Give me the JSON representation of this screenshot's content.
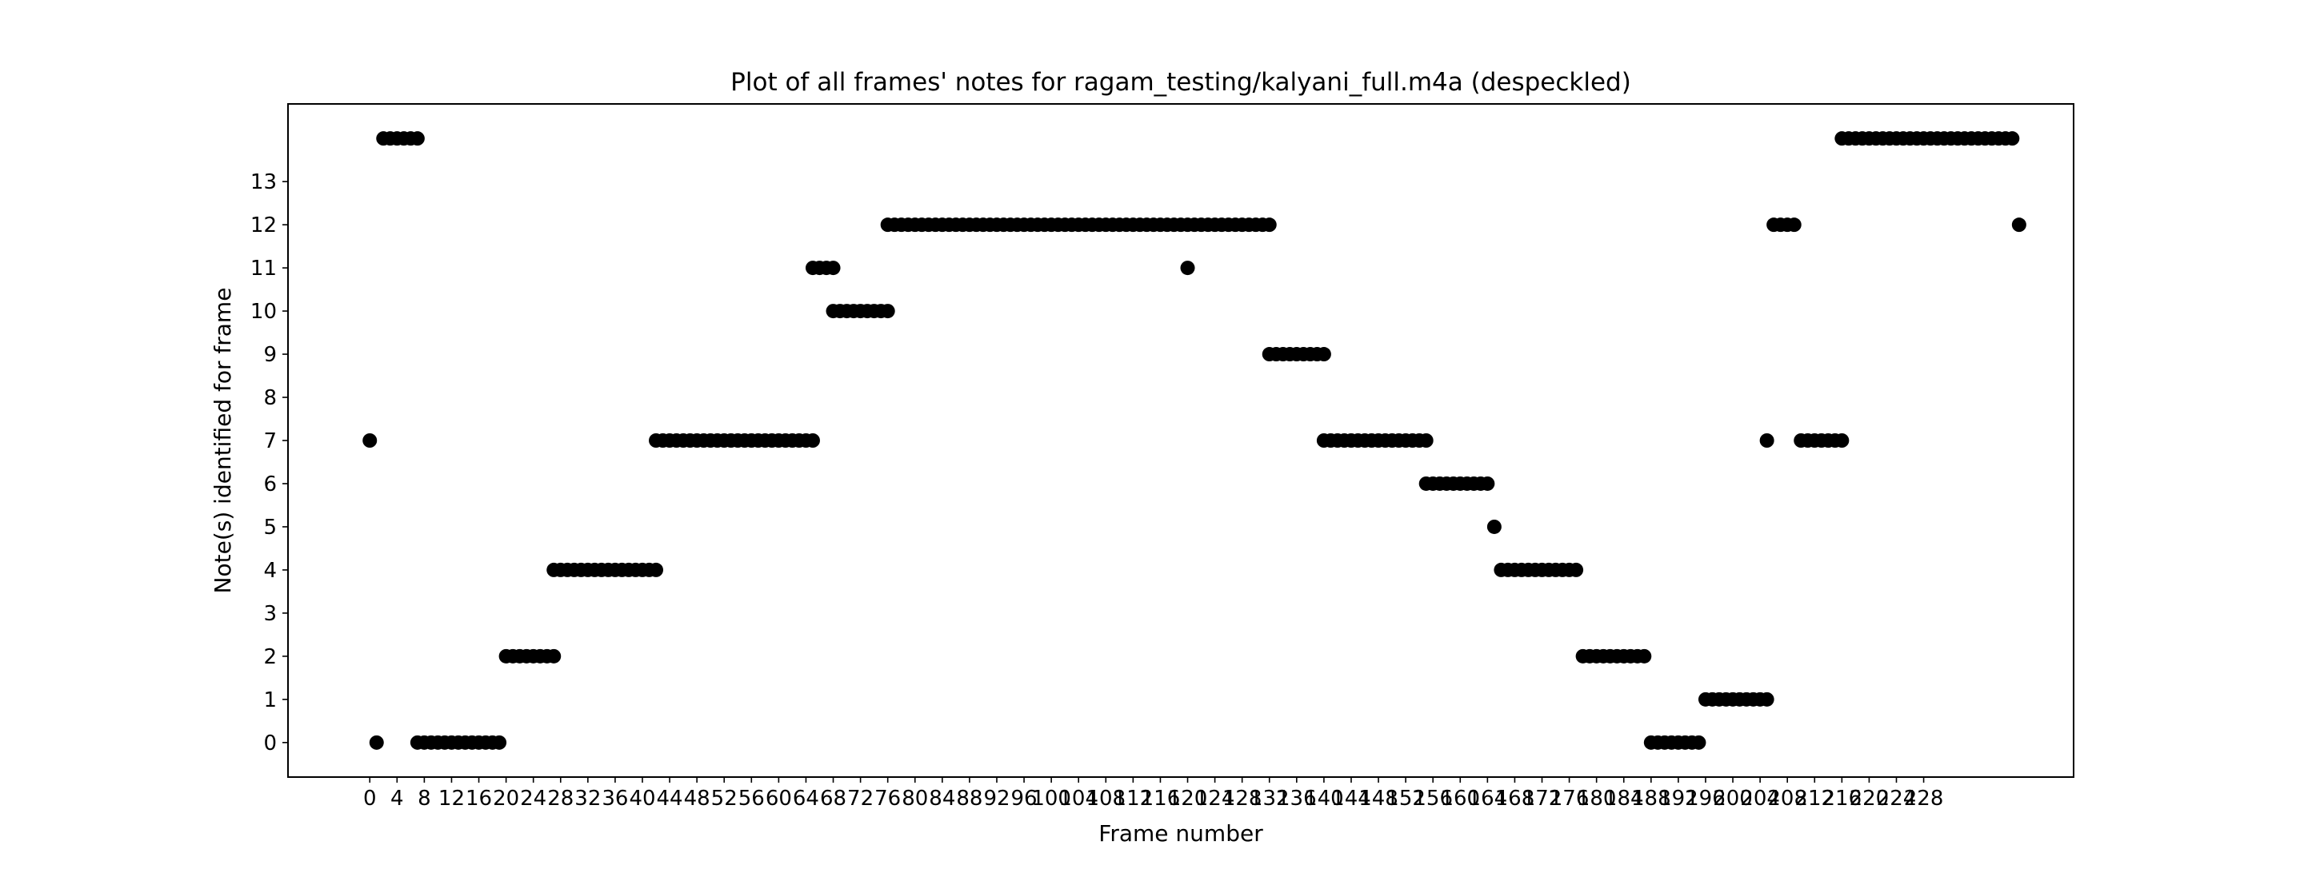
{
  "chart_data": {
    "type": "scatter",
    "title": "Plot of all frames' notes for ragam_testing/kalyani_full.m4a (despeckled)",
    "xlabel": "Frame number",
    "ylabel": "Note(s) identified for frame",
    "xlim": [
      -12,
      250
    ],
    "ylim": [
      -0.8,
      14.8
    ],
    "xticks": [
      0,
      4,
      8,
      12,
      16,
      20,
      24,
      28,
      32,
      36,
      40,
      44,
      48,
      52,
      56,
      60,
      64,
      68,
      72,
      76,
      80,
      84,
      88,
      92,
      96,
      100,
      104,
      108,
      112,
      116,
      120,
      124,
      128,
      132,
      136,
      140,
      144,
      148,
      152,
      156,
      160,
      164,
      168,
      172,
      176,
      180,
      184,
      188,
      192,
      196,
      200,
      204,
      208,
      212,
      216,
      220,
      224,
      228
    ],
    "yticks": [
      0,
      1,
      2,
      3,
      4,
      5,
      6,
      7,
      8,
      9,
      10,
      11,
      12,
      13
    ],
    "marker_color": "#000000",
    "grid": false,
    "legend": "none",
    "runs": [
      {
        "x_start": 0,
        "x_end": 0,
        "y": 7
      },
      {
        "x_start": 1,
        "x_end": 1,
        "y": 0
      },
      {
        "x_start": 2,
        "x_end": 7,
        "y": 14
      },
      {
        "x_start": 7,
        "x_end": 19,
        "y": 0
      },
      {
        "x_start": 20,
        "x_end": 27,
        "y": 2
      },
      {
        "x_start": 27,
        "x_end": 42,
        "y": 4
      },
      {
        "x_start": 42,
        "x_end": 65,
        "y": 7
      },
      {
        "x_start": 65,
        "x_end": 68,
        "y": 11
      },
      {
        "x_start": 68,
        "x_end": 76,
        "y": 10
      },
      {
        "x_start": 76,
        "x_end": 120,
        "y": 12
      },
      {
        "x_start": 120,
        "x_end": 120,
        "y": 11
      },
      {
        "x_start": 121,
        "x_end": 132,
        "y": 12
      },
      {
        "x_start": 132,
        "x_end": 140,
        "y": 9
      },
      {
        "x_start": 140,
        "x_end": 155,
        "y": 7
      },
      {
        "x_start": 155,
        "x_end": 164,
        "y": 6
      },
      {
        "x_start": 165,
        "x_end": 165,
        "y": 5
      },
      {
        "x_start": 166,
        "x_end": 177,
        "y": 4
      },
      {
        "x_start": 178,
        "x_end": 187,
        "y": 2
      },
      {
        "x_start": 188,
        "x_end": 195,
        "y": 0
      },
      {
        "x_start": 196,
        "x_end": 205,
        "y": 1
      },
      {
        "x_start": 205,
        "x_end": 205,
        "y": 7
      },
      {
        "x_start": 206,
        "x_end": 209,
        "y": 12
      },
      {
        "x_start": 210,
        "x_end": 216,
        "y": 7
      },
      {
        "x_start": 216,
        "x_end": 241,
        "y": 14
      },
      {
        "x_start": 242,
        "x_end": 242,
        "y": 12
      }
    ]
  }
}
